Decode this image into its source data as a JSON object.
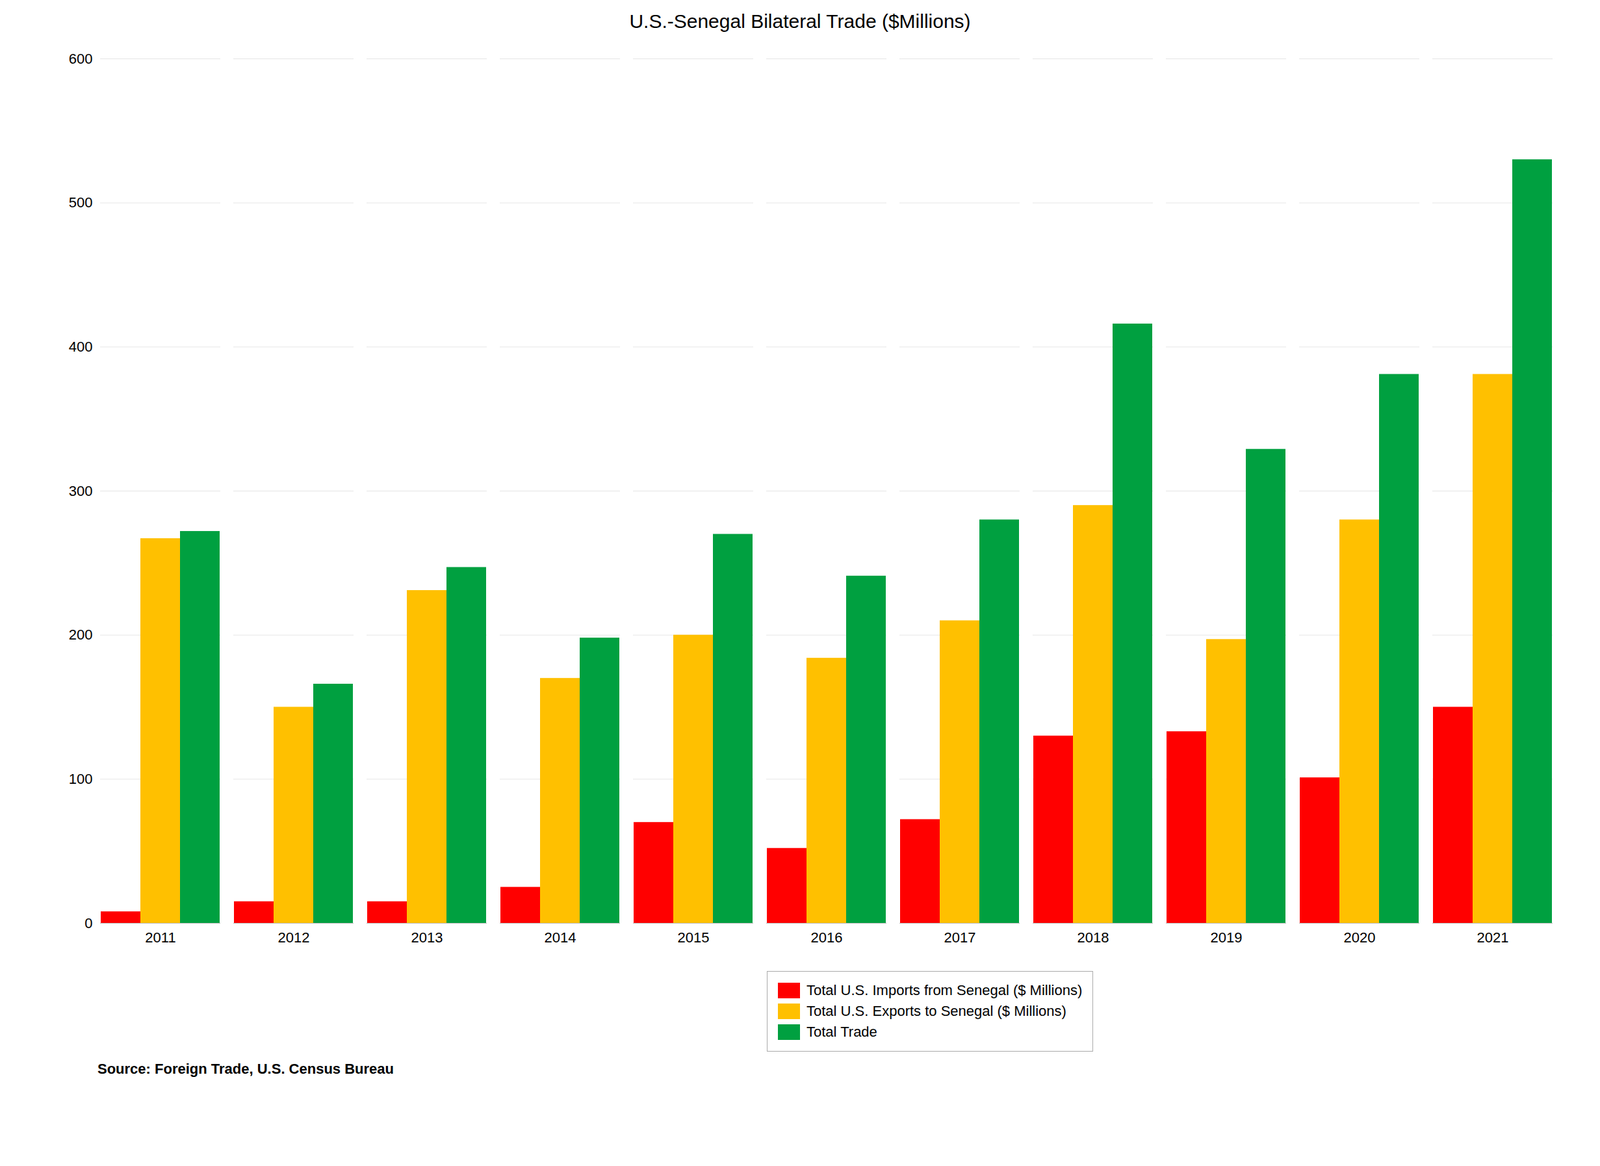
{
  "chart_data": {
    "type": "bar",
    "title": "U.S.-Senegal Bilateral Trade ($Millions)",
    "categories": [
      "2011",
      "2012",
      "2013",
      "2014",
      "2015",
      "2016",
      "2017",
      "2018",
      "2019",
      "2020",
      "2021"
    ],
    "series": [
      {
        "name": "Total U.S. Imports from Senegal ($ Millions)",
        "color": "#FF0000",
        "values": [
          8,
          15,
          15,
          25,
          70,
          52,
          72,
          130,
          133,
          101,
          150
        ]
      },
      {
        "name": "Total U.S. Exports to Senegal ($ Millions)",
        "color": "#FFC000",
        "values": [
          267,
          150,
          231,
          170,
          200,
          184,
          210,
          290,
          197,
          280,
          381
        ]
      },
      {
        "name": "Total Trade",
        "color": "#00A040",
        "values": [
          272,
          166,
          247,
          198,
          270,
          241,
          280,
          416,
          329,
          381,
          530
        ]
      }
    ],
    "ylim": [
      0,
      600
    ],
    "yticks": [
      0,
      100,
      200,
      300,
      400,
      500,
      600
    ],
    "grid": true,
    "legend": "bottom",
    "annotations": [
      "Source: Foreign Trade, U.S. Census Bureau"
    ]
  }
}
